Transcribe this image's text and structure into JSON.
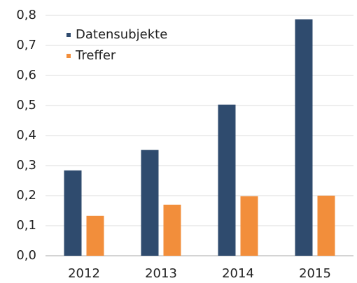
{
  "chart_data": {
    "type": "bar",
    "categories": [
      "2012",
      "2013",
      "2014",
      "2015"
    ],
    "series": [
      {
        "name": "Datensubjekte",
        "color": "#2f4b6e",
        "values": [
          0.284,
          0.352,
          0.503,
          0.787
        ]
      },
      {
        "name": "Treffer",
        "color": "#f28e3b",
        "values": [
          0.133,
          0.17,
          0.198,
          0.2
        ]
      }
    ],
    "ylim": [
      0,
      0.8
    ],
    "yticks": [
      {
        "value": 0,
        "label": "0,0"
      },
      {
        "value": 0.1,
        "label": "0,1"
      },
      {
        "value": 0.2,
        "label": "0,2"
      },
      {
        "value": 0.3,
        "label": "0,3"
      },
      {
        "value": 0.4,
        "label": "0,4"
      },
      {
        "value": 0.5,
        "label": "0,5"
      },
      {
        "value": 0.6,
        "label": "0,6"
      },
      {
        "value": 0.7,
        "label": "0,7"
      },
      {
        "value": 0.8,
        "label": "0,8"
      }
    ],
    "grid": true,
    "legend": "top-left"
  }
}
